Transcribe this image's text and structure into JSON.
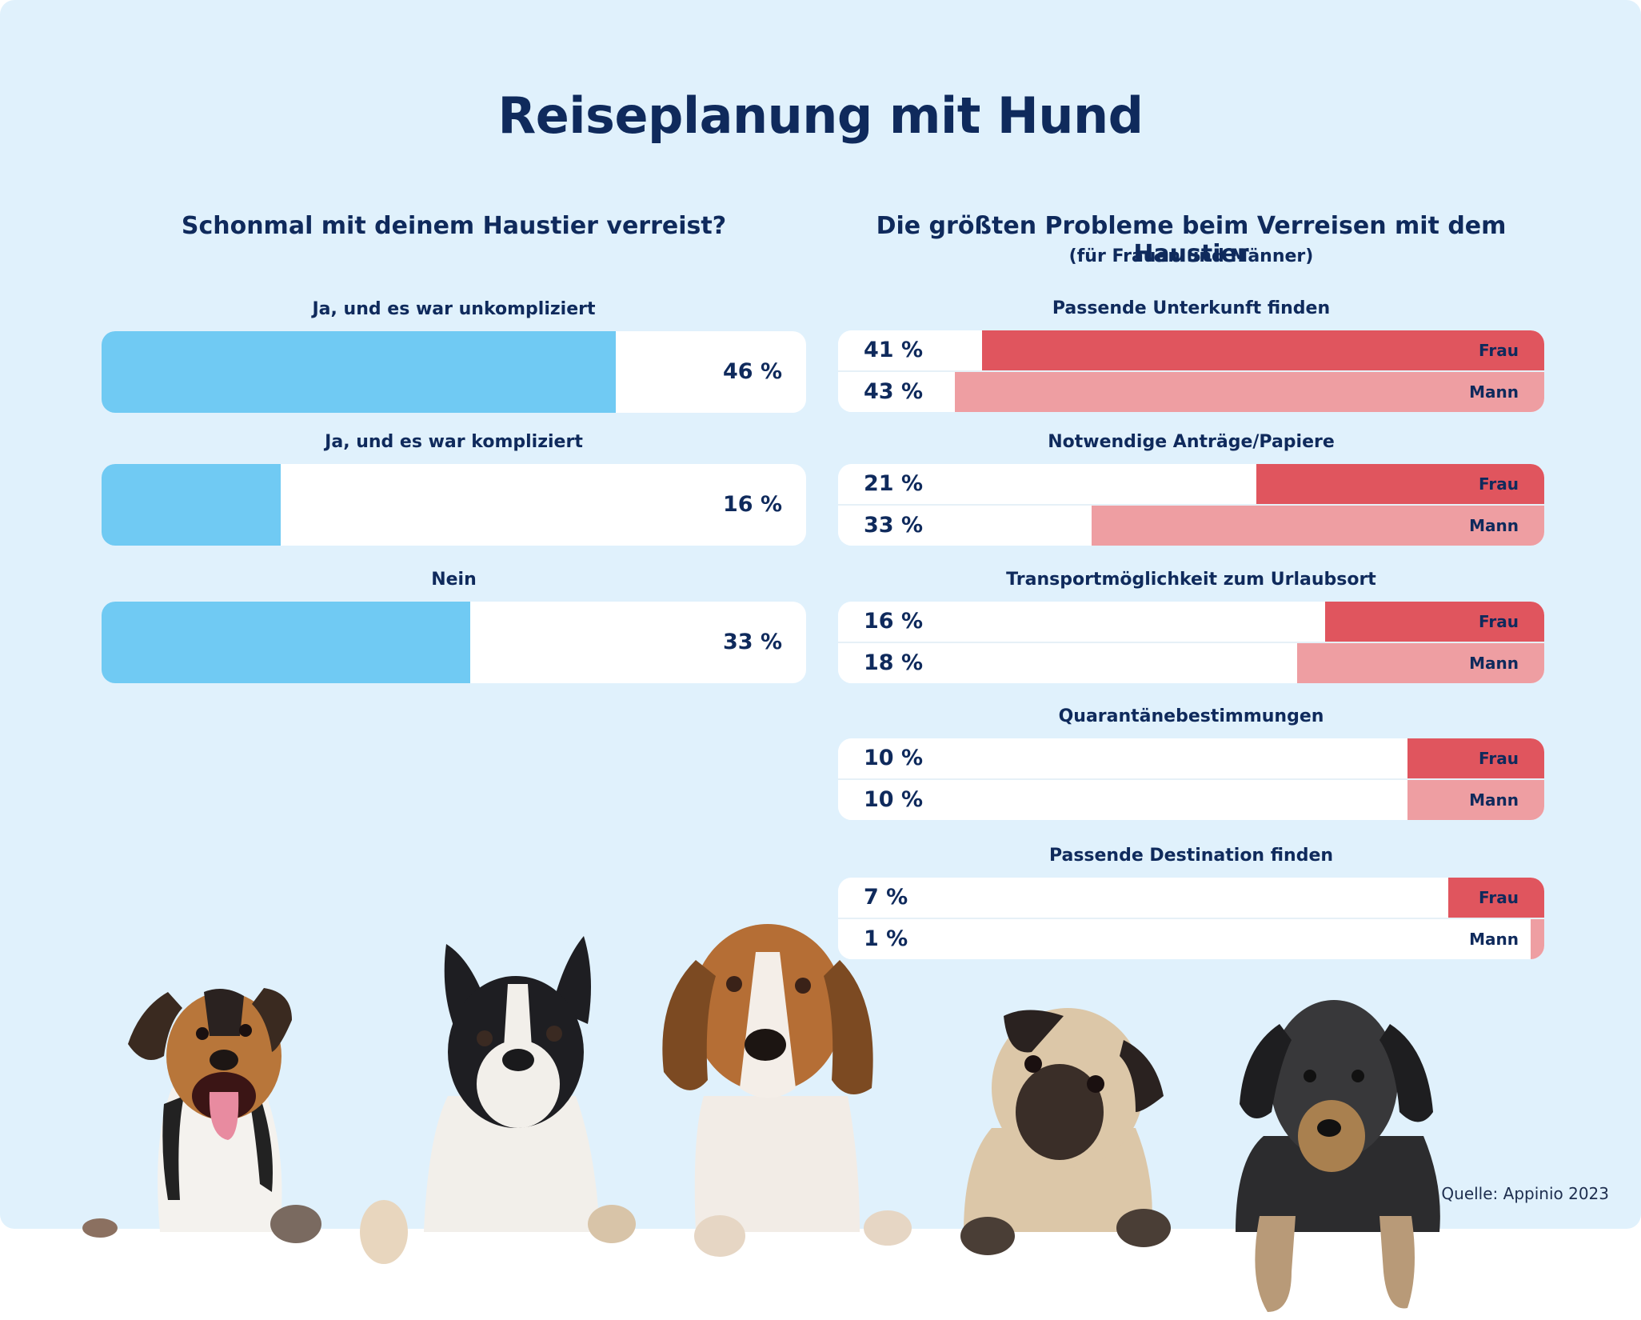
{
  "title": "Reiseplanung mit Hund",
  "source": "Quelle: Appinio 2023",
  "colors": {
    "background": "#E0F1FC",
    "text": "#0F2A5C",
    "left_bar": "#70CAF3",
    "frau": "#E0555E",
    "mann": "#EE9EA2"
  },
  "left": {
    "title": "Schonmal mit deinem Haustier verreist?"
  },
  "right": {
    "title": "Die größten Probleme beim Verreisen mit dem Haustier",
    "subtitle": "(für Frauen und Männer)",
    "frau_label": "Frau",
    "mann_label": "Mann"
  },
  "chart_data": [
    {
      "type": "bar",
      "orientation": "horizontal",
      "title": "Schonmal mit deinem Haustier verreist?",
      "categories": [
        "Ja, und es war unkompliziert",
        "Ja, und es war kompliziert",
        "Nein"
      ],
      "values": [
        46,
        16,
        33
      ],
      "value_labels": [
        "46 %",
        "16 %",
        "33 %"
      ],
      "unit": "%",
      "scale_max": 63
    },
    {
      "type": "bar",
      "orientation": "horizontal",
      "title": "Die größten Probleme beim Verreisen mit dem Haustier",
      "subtitle": "(für Frauen und Männer)",
      "categories": [
        "Passende Unterkunft finden",
        "Notwendige Anträge/Papiere",
        "Transportmöglichkeit zum Urlaubsort",
        "Quarantänebestimmungen",
        "Passende Destination finden"
      ],
      "series": [
        {
          "name": "Frau",
          "values": [
            41,
            21,
            16,
            10,
            7
          ],
          "value_labels": [
            "41 %",
            "21 %",
            "16 %",
            "10 %",
            "7 %"
          ]
        },
        {
          "name": "Mann",
          "values": [
            43,
            33,
            18,
            10,
            1
          ],
          "value_labels": [
            "43 %",
            "33 %",
            "18 %",
            "10 %",
            "1 %"
          ]
        }
      ],
      "unit": "%",
      "scale_max": 51.5,
      "legend": "inline-right"
    }
  ],
  "dogs": [
    {
      "breed": "Jack Russell Terrier"
    },
    {
      "breed": "Boston Terrier"
    },
    {
      "breed": "Beagle"
    },
    {
      "breed": "Mops"
    },
    {
      "breed": "Rauhaardackel"
    }
  ]
}
